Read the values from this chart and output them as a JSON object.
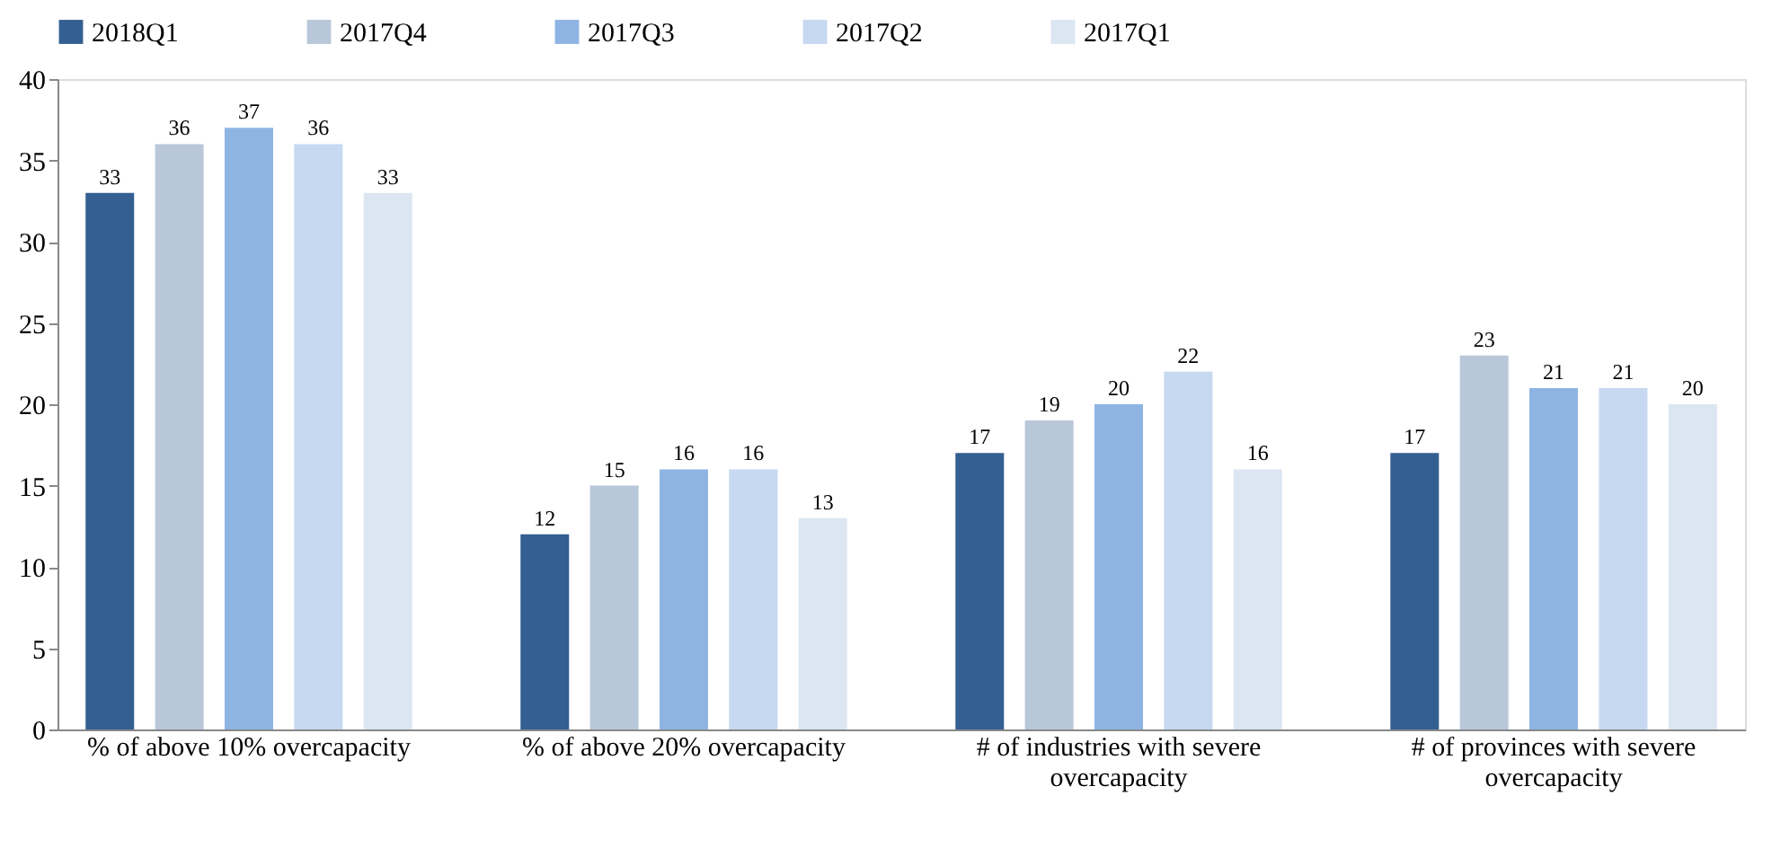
{
  "chart_data": {
    "type": "bar",
    "categories": [
      "% of above 10% overcapacity",
      "% of above 20% overcapacity",
      "# of industries with severe overcapacity",
      "# of provinces with severe overcapacity"
    ],
    "series": [
      {
        "name": "2018Q1",
        "color": "#335f91",
        "values": [
          33,
          12,
          17,
          17
        ]
      },
      {
        "name": "2017Q4",
        "color": "#b9c7da",
        "values": [
          36,
          15,
          19,
          23
        ]
      },
      {
        "name": "2017Q3",
        "color": "#8eb4e3",
        "values": [
          37,
          16,
          20,
          21
        ]
      },
      {
        "name": "2017Q2",
        "color": "#c6d9f1",
        "values": [
          36,
          16,
          22,
          21
        ]
      },
      {
        "name": "2017Q1",
        "color": "#dce6f2",
        "values": [
          33,
          13,
          16,
          20
        ]
      }
    ],
    "ylim": [
      0,
      40
    ],
    "yticks": [
      0,
      5,
      10,
      15,
      20,
      25,
      30,
      35,
      40
    ],
    "grid": false,
    "legend": "top",
    "data_labels": true
  }
}
